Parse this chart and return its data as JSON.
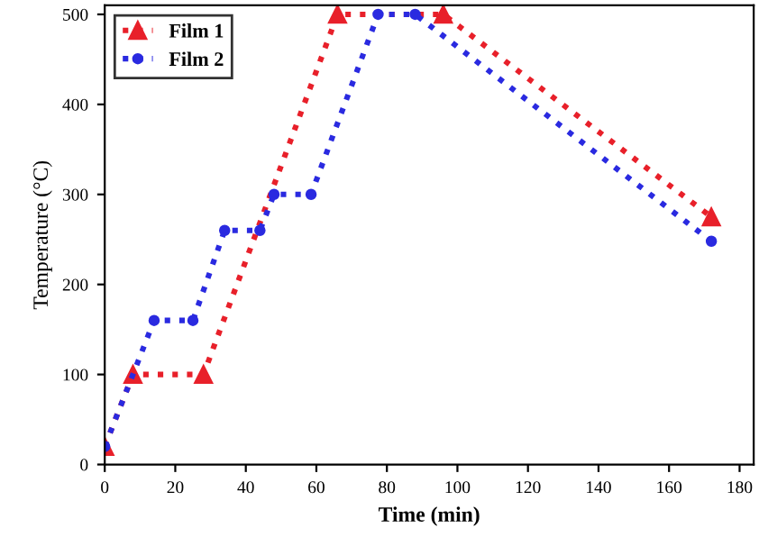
{
  "chart_data": {
    "type": "line",
    "xlabel": "Time (min)",
    "ylabel": "Temperature (°C)",
    "xlim": [
      0,
      184
    ],
    "ylim": [
      0,
      510
    ],
    "xticks": [
      0,
      20,
      40,
      60,
      80,
      100,
      120,
      140,
      160,
      180
    ],
    "yticks": [
      0,
      100,
      200,
      300,
      400,
      500
    ],
    "grid": false,
    "legend": "top left",
    "line_style": "dotted",
    "series": [
      {
        "name": "Film 1",
        "color": "#e8202a",
        "marker": "triangle",
        "x": [
          0,
          8,
          28,
          66,
          96,
          172
        ],
        "values": [
          20,
          100,
          100,
          500,
          500,
          275
        ]
      },
      {
        "name": "Film 2",
        "color": "#2a2ae0",
        "marker": "circle",
        "x": [
          0,
          14,
          25,
          34,
          44,
          48,
          58.5,
          77.5,
          88,
          172
        ],
        "values": [
          20,
          160,
          160,
          260,
          260,
          300,
          300,
          500,
          500,
          248
        ]
      }
    ]
  }
}
